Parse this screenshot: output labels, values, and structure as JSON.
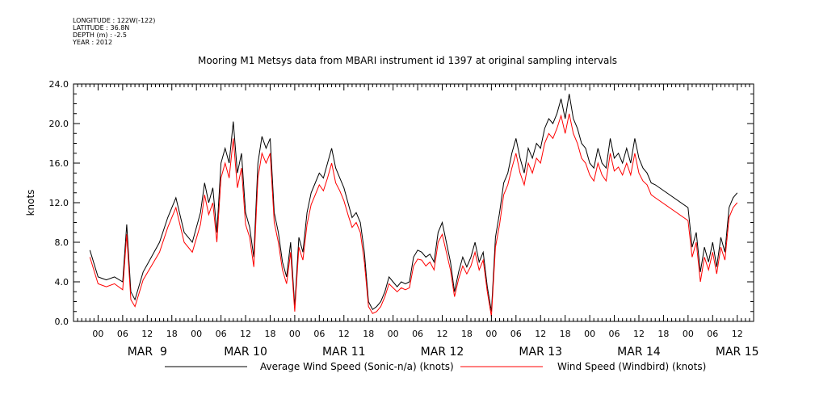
{
  "meta": {
    "longitude": "LONGITUDE : 122W(-122)",
    "latitude": "LATITUDE : 36.8N",
    "depth": "DEPTH (m) : -2.5",
    "year": "YEAR : 2012"
  },
  "chart_data": {
    "type": "line",
    "title": "Mooring M1 Metsys data from MBARI instrument id 1397 at original sampling intervals",
    "ylabel": "knots",
    "xlabel": "",
    "ylim": [
      0,
      24
    ],
    "y_ticks": [
      "0.0",
      "4.0",
      "8.0",
      "12.0",
      "16.0",
      "20.0",
      "24.0"
    ],
    "x_unit": "hours since MAR 9 00:00",
    "xlim": [
      -6,
      160
    ],
    "hour_ticks": [
      "00",
      "06",
      "12",
      "18"
    ],
    "days": [
      "MAR  9",
      "MAR 10",
      "MAR 11",
      "MAR 12",
      "MAR 13",
      "MAR 14",
      "MAR 15"
    ],
    "series": [
      {
        "name": "Average Wind Speed (Sonic-n/a) (knots)",
        "color": "#000000",
        "points": [
          [
            -2,
            7.2
          ],
          [
            0,
            4.5
          ],
          [
            2,
            4.2
          ],
          [
            4,
            4.5
          ],
          [
            6,
            4.0
          ],
          [
            7,
            9.8
          ],
          [
            8,
            3.0
          ],
          [
            9,
            2.2
          ],
          [
            11,
            5.0
          ],
          [
            13,
            6.5
          ],
          [
            15,
            8.0
          ],
          [
            17,
            10.5
          ],
          [
            19,
            12.5
          ],
          [
            21,
            9.0
          ],
          [
            23,
            8.0
          ],
          [
            25,
            11.0
          ],
          [
            26,
            14.0
          ],
          [
            27,
            12.0
          ],
          [
            28,
            13.5
          ],
          [
            29,
            9.0
          ],
          [
            30,
            16.0
          ],
          [
            31,
            17.5
          ],
          [
            32,
            16.0
          ],
          [
            33,
            20.2
          ],
          [
            34,
            15.0
          ],
          [
            35,
            17.0
          ],
          [
            36,
            11.0
          ],
          [
            37,
            9.5
          ],
          [
            38,
            6.5
          ],
          [
            39,
            16.0
          ],
          [
            40,
            18.7
          ],
          [
            41,
            17.5
          ],
          [
            42,
            18.5
          ],
          [
            43,
            11.0
          ],
          [
            44,
            9.0
          ],
          [
            45,
            6.0
          ],
          [
            46,
            4.5
          ],
          [
            47,
            8.0
          ],
          [
            48,
            1.5
          ],
          [
            49,
            8.5
          ],
          [
            50,
            7.0
          ],
          [
            51,
            11.0
          ],
          [
            52,
            13.0
          ],
          [
            53,
            14.0
          ],
          [
            54,
            15.0
          ],
          [
            55,
            14.5
          ],
          [
            56,
            16.0
          ],
          [
            57,
            17.5
          ],
          [
            58,
            15.5
          ],
          [
            59,
            14.5
          ],
          [
            60,
            13.5
          ],
          [
            61,
            12.0
          ],
          [
            62,
            10.5
          ],
          [
            63,
            11.0
          ],
          [
            64,
            10.0
          ],
          [
            65,
            7.0
          ],
          [
            66,
            2.0
          ],
          [
            67,
            1.2
          ],
          [
            68,
            1.5
          ],
          [
            69,
            2.0
          ],
          [
            70,
            3.0
          ],
          [
            71,
            4.5
          ],
          [
            72,
            4.0
          ],
          [
            73,
            3.5
          ],
          [
            74,
            4.0
          ],
          [
            75,
            3.8
          ],
          [
            76,
            4.0
          ],
          [
            77,
            6.5
          ],
          [
            78,
            7.2
          ],
          [
            79,
            7.0
          ],
          [
            80,
            6.5
          ],
          [
            81,
            6.8
          ],
          [
            82,
            6.0
          ],
          [
            83,
            9.0
          ],
          [
            84,
            10.0
          ],
          [
            85,
            8.0
          ],
          [
            86,
            6.0
          ],
          [
            87,
            3.0
          ],
          [
            88,
            5.0
          ],
          [
            89,
            6.5
          ],
          [
            90,
            5.5
          ],
          [
            91,
            6.5
          ],
          [
            92,
            8.0
          ],
          [
            93,
            6.0
          ],
          [
            94,
            7.0
          ],
          [
            95,
            3.5
          ],
          [
            96,
            1.0
          ],
          [
            97,
            8.5
          ],
          [
            98,
            11.0
          ],
          [
            99,
            14.0
          ],
          [
            100,
            15.0
          ],
          [
            101,
            17.0
          ],
          [
            102,
            18.5
          ],
          [
            103,
            16.5
          ],
          [
            104,
            15.0
          ],
          [
            105,
            17.5
          ],
          [
            106,
            16.5
          ],
          [
            107,
            18.0
          ],
          [
            108,
            17.5
          ],
          [
            109,
            19.5
          ],
          [
            110,
            20.5
          ],
          [
            111,
            20.0
          ],
          [
            112,
            21.0
          ],
          [
            113,
            22.5
          ],
          [
            114,
            20.5
          ],
          [
            115,
            23.0
          ],
          [
            116,
            20.5
          ],
          [
            117,
            19.5
          ],
          [
            118,
            18.0
          ],
          [
            119,
            17.5
          ],
          [
            120,
            16.0
          ],
          [
            121,
            15.5
          ],
          [
            122,
            17.5
          ],
          [
            123,
            16.0
          ],
          [
            124,
            15.5
          ],
          [
            125,
            18.5
          ],
          [
            126,
            16.5
          ],
          [
            127,
            17.0
          ],
          [
            128,
            16.0
          ],
          [
            129,
            17.5
          ],
          [
            130,
            16.0
          ],
          [
            131,
            18.5
          ],
          [
            132,
            16.5
          ],
          [
            133,
            15.5
          ],
          [
            134,
            15.0
          ],
          [
            135,
            14.0
          ],
          [
            136,
            13.8
          ],
          [
            144,
            11.5
          ],
          [
            145,
            7.5
          ],
          [
            146,
            9.0
          ],
          [
            147,
            5.0
          ],
          [
            148,
            7.5
          ],
          [
            149,
            6.0
          ],
          [
            150,
            8.0
          ],
          [
            151,
            5.5
          ],
          [
            152,
            8.5
          ],
          [
            153,
            7.0
          ],
          [
            154,
            11.5
          ],
          [
            155,
            12.5
          ],
          [
            156,
            13.0
          ]
        ]
      },
      {
        "name": "Wind Speed (Windbird) (knots)",
        "color": "#ff0000",
        "points": [
          [
            -2,
            6.5
          ],
          [
            0,
            3.8
          ],
          [
            2,
            3.5
          ],
          [
            4,
            3.8
          ],
          [
            6,
            3.2
          ],
          [
            7,
            8.8
          ],
          [
            8,
            2.2
          ],
          [
            9,
            1.5
          ],
          [
            11,
            4.2
          ],
          [
            13,
            5.6
          ],
          [
            15,
            7.0
          ],
          [
            17,
            9.5
          ],
          [
            19,
            11.5
          ],
          [
            21,
            8.0
          ],
          [
            23,
            7.0
          ],
          [
            25,
            9.8
          ],
          [
            26,
            12.8
          ],
          [
            27,
            10.8
          ],
          [
            28,
            12.0
          ],
          [
            29,
            8.0
          ],
          [
            30,
            14.5
          ],
          [
            31,
            16.0
          ],
          [
            32,
            14.5
          ],
          [
            33,
            18.5
          ],
          [
            34,
            13.5
          ],
          [
            35,
            15.5
          ],
          [
            36,
            9.8
          ],
          [
            37,
            8.5
          ],
          [
            38,
            5.5
          ],
          [
            39,
            14.5
          ],
          [
            40,
            17.0
          ],
          [
            41,
            16.0
          ],
          [
            42,
            17.0
          ],
          [
            43,
            10.0
          ],
          [
            44,
            8.0
          ],
          [
            45,
            5.2
          ],
          [
            46,
            3.8
          ],
          [
            47,
            7.0
          ],
          [
            48,
            1.0
          ],
          [
            49,
            7.5
          ],
          [
            50,
            6.2
          ],
          [
            51,
            9.8
          ],
          [
            52,
            11.8
          ],
          [
            53,
            12.8
          ],
          [
            54,
            13.8
          ],
          [
            55,
            13.2
          ],
          [
            56,
            14.5
          ],
          [
            57,
            16.0
          ],
          [
            58,
            14.0
          ],
          [
            59,
            13.2
          ],
          [
            60,
            12.2
          ],
          [
            61,
            10.8
          ],
          [
            62,
            9.5
          ],
          [
            63,
            10.0
          ],
          [
            64,
            9.0
          ],
          [
            65,
            6.0
          ],
          [
            66,
            1.5
          ],
          [
            67,
            0.8
          ],
          [
            68,
            1.0
          ],
          [
            69,
            1.5
          ],
          [
            70,
            2.5
          ],
          [
            71,
            3.8
          ],
          [
            72,
            3.4
          ],
          [
            73,
            3.0
          ],
          [
            74,
            3.4
          ],
          [
            75,
            3.2
          ],
          [
            76,
            3.4
          ],
          [
            77,
            5.6
          ],
          [
            78,
            6.3
          ],
          [
            79,
            6.2
          ],
          [
            80,
            5.6
          ],
          [
            81,
            6.0
          ],
          [
            82,
            5.2
          ],
          [
            83,
            8.0
          ],
          [
            84,
            8.8
          ],
          [
            85,
            7.0
          ],
          [
            86,
            5.2
          ],
          [
            87,
            2.5
          ],
          [
            88,
            4.3
          ],
          [
            89,
            5.6
          ],
          [
            90,
            4.8
          ],
          [
            91,
            5.6
          ],
          [
            92,
            7.0
          ],
          [
            93,
            5.2
          ],
          [
            94,
            6.2
          ],
          [
            95,
            3.0
          ],
          [
            96,
            0.5
          ],
          [
            97,
            7.5
          ],
          [
            98,
            9.8
          ],
          [
            99,
            12.8
          ],
          [
            100,
            13.8
          ],
          [
            101,
            15.5
          ],
          [
            102,
            17.0
          ],
          [
            103,
            15.0
          ],
          [
            104,
            13.8
          ],
          [
            105,
            16.0
          ],
          [
            106,
            15.0
          ],
          [
            107,
            16.5
          ],
          [
            108,
            16.0
          ],
          [
            109,
            18.0
          ],
          [
            110,
            19.0
          ],
          [
            111,
            18.5
          ],
          [
            112,
            19.5
          ],
          [
            113,
            20.8
          ],
          [
            114,
            19.0
          ],
          [
            115,
            21.0
          ],
          [
            116,
            19.0
          ],
          [
            117,
            18.0
          ],
          [
            118,
            16.5
          ],
          [
            119,
            16.0
          ],
          [
            120,
            14.8
          ],
          [
            121,
            14.2
          ],
          [
            122,
            16.0
          ],
          [
            123,
            14.8
          ],
          [
            124,
            14.2
          ],
          [
            125,
            17.0
          ],
          [
            126,
            15.2
          ],
          [
            127,
            15.6
          ],
          [
            128,
            14.8
          ],
          [
            129,
            16.0
          ],
          [
            130,
            14.8
          ],
          [
            131,
            17.0
          ],
          [
            132,
            15.0
          ],
          [
            133,
            14.2
          ],
          [
            134,
            13.8
          ],
          [
            135,
            12.8
          ],
          [
            136,
            12.5
          ],
          [
            144,
            10.2
          ],
          [
            145,
            6.5
          ],
          [
            146,
            8.0
          ],
          [
            147,
            4.0
          ],
          [
            148,
            6.5
          ],
          [
            149,
            5.2
          ],
          [
            150,
            7.0
          ],
          [
            151,
            4.8
          ],
          [
            152,
            7.5
          ],
          [
            153,
            6.2
          ],
          [
            154,
            10.5
          ],
          [
            155,
            11.5
          ],
          [
            156,
            12.0
          ]
        ]
      }
    ],
    "grid": false,
    "legend_position": "bottom"
  }
}
